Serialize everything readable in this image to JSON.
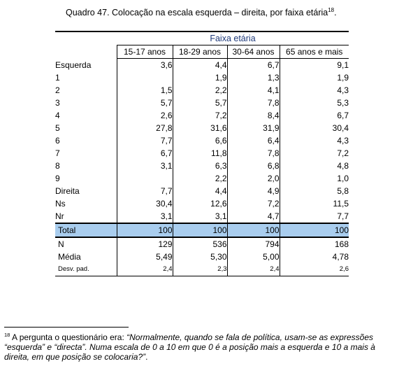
{
  "caption": {
    "text": "Quadro 47. Colocação na escala esquerda – direita, por faixa etária",
    "note_ref": "18",
    "end": "."
  },
  "table": {
    "group_header": "Faixa etária",
    "columns": [
      "15-17 anos",
      "18-29 anos",
      "30-64 anos",
      "65 anos e mais"
    ],
    "rows": [
      {
        "label": "Esquerda",
        "values": [
          "3,6",
          "4,4",
          "6,7",
          "9,1"
        ]
      },
      {
        "label": "1",
        "values": [
          "",
          "1,9",
          "1,3",
          "1,9"
        ]
      },
      {
        "label": "2",
        "values": [
          "1,5",
          "2,2",
          "4,1",
          "4,3"
        ]
      },
      {
        "label": "3",
        "values": [
          "5,7",
          "5,7",
          "7,8",
          "5,3"
        ]
      },
      {
        "label": "4",
        "values": [
          "2,6",
          "7,2",
          "8,4",
          "6,7"
        ]
      },
      {
        "label": "5",
        "values": [
          "27,8",
          "31,6",
          "31,9",
          "30,4"
        ]
      },
      {
        "label": "6",
        "values": [
          "7,7",
          "6,6",
          "6,4",
          "4,3"
        ]
      },
      {
        "label": "7",
        "values": [
          "6,7",
          "11,8",
          "7,8",
          "7,2"
        ]
      },
      {
        "label": "8",
        "values": [
          "3,1",
          "6,3",
          "6,8",
          "4,8"
        ]
      },
      {
        "label": "9",
        "values": [
          "",
          "2,2",
          "2,0",
          "1,0"
        ]
      },
      {
        "label": "Direita",
        "values": [
          "7,7",
          "4,4",
          "4,9",
          "5,8"
        ]
      },
      {
        "label": "Ns",
        "values": [
          "30,4",
          "12,6",
          "7,2",
          "11,5"
        ]
      },
      {
        "label": "Nr",
        "values": [
          "3,1",
          "3,1",
          "4,7",
          "7,7"
        ]
      }
    ],
    "total": {
      "label": "Total",
      "values": [
        "100",
        "100",
        "100",
        "100"
      ]
    },
    "summary": [
      {
        "label": "N",
        "values": [
          "129",
          "536",
          "794",
          "168"
        ]
      },
      {
        "label": "Média",
        "values": [
          "5,49",
          "5,30",
          "5,00",
          "4,78"
        ]
      },
      {
        "label": "Desv. pad.",
        "values": [
          "2,4",
          "2,3",
          "2,4",
          "2,6"
        ]
      }
    ],
    "total_row_color": "#a9cdee",
    "group_header_color": "#1f3a7a"
  },
  "footnote": {
    "number": "18",
    "intro": "A pergunta o questionário era: ",
    "quote": "“Normalmente, quando se fala de política, usam-se as expressões “esquerda” e “directa”. Numa escala de 0 a 10 em que 0 é a posição mais a esquerda e 10 a mais à direita, em que posição se colocaria?”",
    "end": "."
  }
}
